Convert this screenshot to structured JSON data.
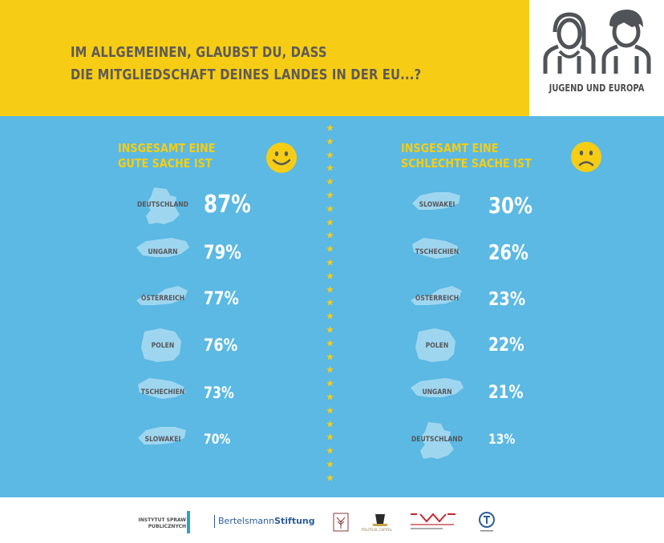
{
  "question": {
    "line1": "IM ALLGEMEINEN, GLAUBST DU, DASS",
    "line2": "DIE MITGLIEDSCHAFT DEINES LANDES IN DER EU...?"
  },
  "brand": {
    "title": "JUGEND UND EUROPA"
  },
  "colors": {
    "yellow": "#f6cd14",
    "blue": "#5bb9e3",
    "shape": "#9fd6ef",
    "gray": "#5e5a57"
  },
  "chart_data": [
    {
      "type": "bar",
      "title_line1": "INSGESAMT EINE",
      "title_line2": "GUTE SACHE IST",
      "icon": "smiley-happy-icon",
      "categories": [
        "DEUTSCHLAND",
        "UNGARN",
        "ÖSTERREICH",
        "POLEN",
        "TSCHECHIEN",
        "SLOWAKEI"
      ],
      "values": [
        87,
        79,
        77,
        76,
        73,
        70
      ],
      "labels": [
        "87%",
        "79%",
        "77%",
        "76%",
        "73%",
        "70%"
      ]
    },
    {
      "type": "bar",
      "title_line1": "INSGESAMT EINE",
      "title_line2": "SCHLECHTE SACHE IST",
      "icon": "smiley-sad-icon",
      "categories": [
        "SLOWAKEI",
        "TSCHECHIEN",
        "ÖSTERREICH",
        "POLEN",
        "UNGARN",
        "DEUTSCHLAND"
      ],
      "values": [
        30,
        26,
        23,
        22,
        21,
        13
      ],
      "labels": [
        "30%",
        "26%",
        "23%",
        "22%",
        "21%",
        "13%"
      ]
    }
  ],
  "footer": {
    "isp_line1": "INSTYTUT SPRAW",
    "isp_line2": "PUBLICZNYCH",
    "bertelsmann_a": "Bertelsmann",
    "bertelsmann_b": "Stiftung",
    "pc": "POLITICAL CAPITAL"
  }
}
